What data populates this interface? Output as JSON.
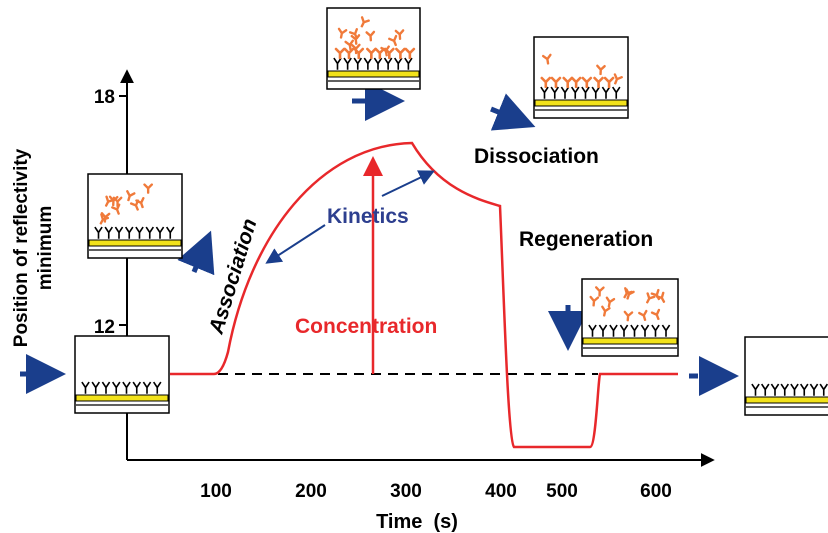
{
  "axes": {
    "y_label_line1": "Position of reflectivity",
    "y_label_line2": "minimum",
    "x_label": "Time  (s)",
    "y_ticks": [
      "18",
      "12"
    ],
    "x_ticks": [
      "100",
      "200",
      "300",
      "400",
      "500",
      "600"
    ]
  },
  "labels": {
    "association": "Association",
    "kinetics": "Kinetics",
    "concentration": "Concentration",
    "dissociation": "Dissociation",
    "regeneration": "Regeneration"
  },
  "colors": {
    "curve": "#e8282b",
    "arrow": "#1a3e8c",
    "kinetics_text": "#2d3f8f",
    "gold": "#f2e21a",
    "antibody": "#f07a3a"
  },
  "icons": {
    "receptor": "Y-shaped receptor glyph",
    "analyte": "antibody glyph"
  }
}
